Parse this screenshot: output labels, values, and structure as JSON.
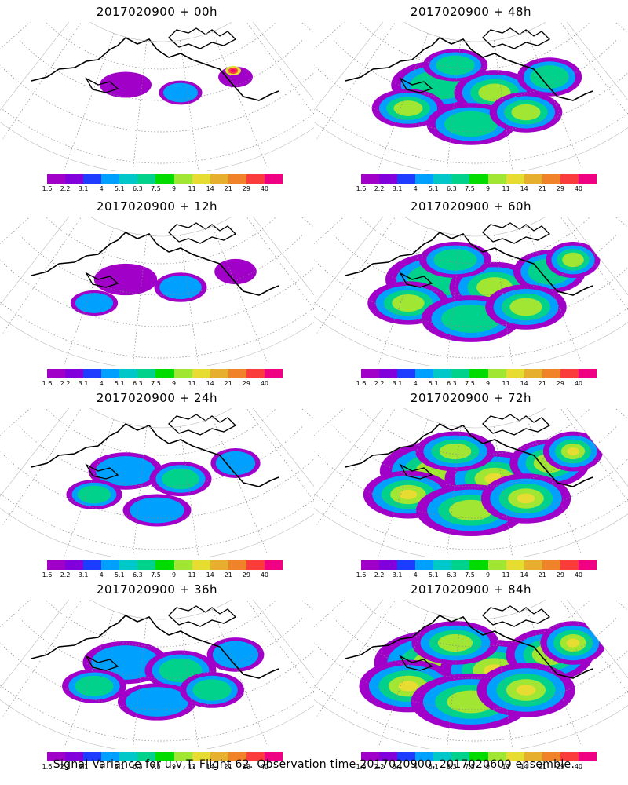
{
  "colorbar": {
    "labels": [
      "1.6",
      "2.2",
      "3.1",
      "4",
      "5.1",
      "6.3",
      "7.5",
      "9",
      "11",
      "14",
      "21",
      "29",
      "40"
    ],
    "colors": [
      "#a000c8",
      "#8200dc",
      "#1e3cff",
      "#00a0ff",
      "#00c8c8",
      "#00d28c",
      "#00dc00",
      "#a0e632",
      "#e6dc32",
      "#e6af2d",
      "#f08228",
      "#fa3c3c",
      "#f00082"
    ]
  },
  "panels": [
    {
      "title": "2017020900 + 00h",
      "intensity": 0
    },
    {
      "title": "2017020900 + 48h",
      "intensity": 4
    },
    {
      "title": "2017020900 + 12h",
      "intensity": 1
    },
    {
      "title": "2017020900 + 60h",
      "intensity": 5
    },
    {
      "title": "2017020900 + 24h",
      "intensity": 2
    },
    {
      "title": "2017020900 + 72h",
      "intensity": 6
    },
    {
      "title": "2017020900 + 36h",
      "intensity": 3
    },
    {
      "title": "2017020900 + 84h",
      "intensity": 7
    }
  ],
  "footer": "Signal Variance for u,v,T. Flight 62. Observation time 2017020900. 2017020600 ensemble."
}
